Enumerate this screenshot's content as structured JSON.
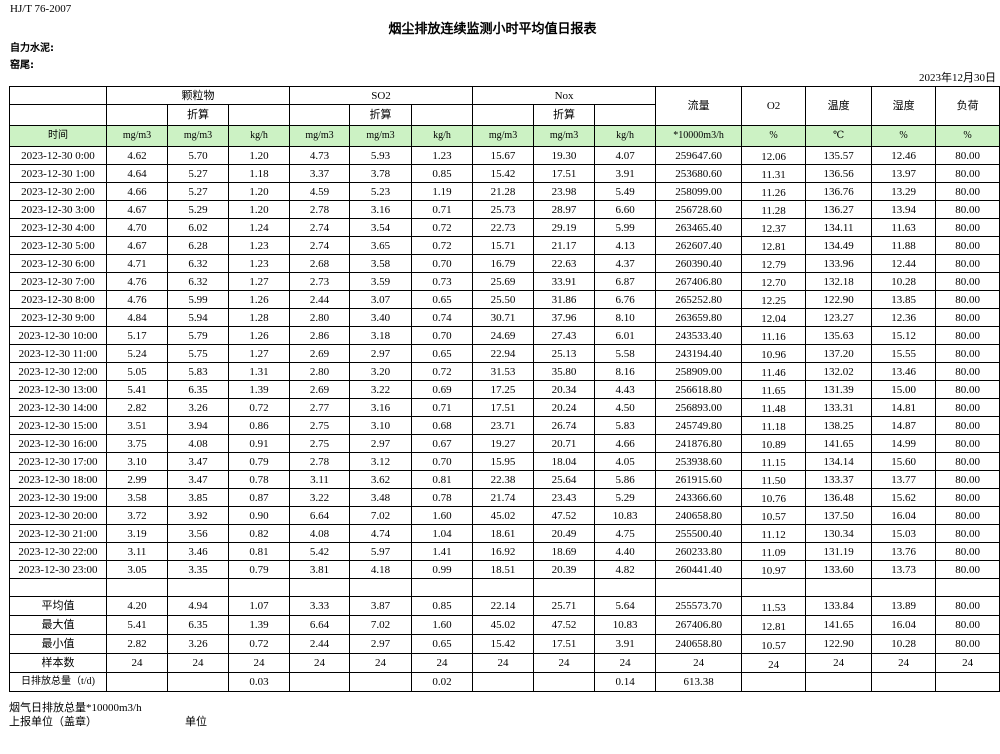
{
  "header": {
    "standard": "HJ/T  76-2007",
    "title": "烟尘排放连续监测小时平均值日报表",
    "company": "自力水泥:",
    "kiln": "窑尾:",
    "date": "2023年12月30日"
  },
  "table": {
    "groups": [
      "颗粒物",
      "SO2",
      "Nox"
    ],
    "converted_label": "折算",
    "single_headers": [
      "流量",
      "O2",
      "温度",
      "湿度",
      "负荷"
    ],
    "units": [
      "时间",
      "mg/m3",
      "mg/m3",
      "kg/h",
      "mg/m3",
      "mg/m3",
      "kg/h",
      "mg/m3",
      "mg/m3",
      "kg/h",
      "*10000m3/h",
      "%",
      "℃",
      "%",
      "%"
    ],
    "rows": [
      [
        "2023-12-30 0:00",
        "4.62",
        "5.70",
        "1.20",
        "4.73",
        "5.93",
        "1.23",
        "15.67",
        "19.30",
        "4.07",
        "259647.60",
        "12.06",
        "135.57",
        "12.46",
        "80.00"
      ],
      [
        "2023-12-30 1:00",
        "4.64",
        "5.27",
        "1.18",
        "3.37",
        "3.78",
        "0.85",
        "15.42",
        "17.51",
        "3.91",
        "253680.60",
        "11.31",
        "136.56",
        "13.97",
        "80.00"
      ],
      [
        "2023-12-30 2:00",
        "4.66",
        "5.27",
        "1.20",
        "4.59",
        "5.23",
        "1.19",
        "21.28",
        "23.98",
        "5.49",
        "258099.00",
        "11.26",
        "136.76",
        "13.29",
        "80.00"
      ],
      [
        "2023-12-30 3:00",
        "4.67",
        "5.29",
        "1.20",
        "2.78",
        "3.16",
        "0.71",
        "25.73",
        "28.97",
        "6.60",
        "256728.60",
        "11.28",
        "136.27",
        "13.94",
        "80.00"
      ],
      [
        "2023-12-30 4:00",
        "4.70",
        "6.02",
        "1.24",
        "2.74",
        "3.54",
        "0.72",
        "22.73",
        "29.19",
        "5.99",
        "263465.40",
        "12.37",
        "134.11",
        "11.63",
        "80.00"
      ],
      [
        "2023-12-30 5:00",
        "4.67",
        "6.28",
        "1.23",
        "2.74",
        "3.65",
        "0.72",
        "15.71",
        "21.17",
        "4.13",
        "262607.40",
        "12.81",
        "134.49",
        "11.88",
        "80.00"
      ],
      [
        "2023-12-30 6:00",
        "4.71",
        "6.32",
        "1.23",
        "2.68",
        "3.58",
        "0.70",
        "16.79",
        "22.63",
        "4.37",
        "260390.40",
        "12.79",
        "133.96",
        "12.44",
        "80.00"
      ],
      [
        "2023-12-30 7:00",
        "4.76",
        "6.32",
        "1.27",
        "2.73",
        "3.59",
        "0.73",
        "25.69",
        "33.91",
        "6.87",
        "267406.80",
        "12.70",
        "132.18",
        "10.28",
        "80.00"
      ],
      [
        "2023-12-30 8:00",
        "4.76",
        "5.99",
        "1.26",
        "2.44",
        "3.07",
        "0.65",
        "25.50",
        "31.86",
        "6.76",
        "265252.80",
        "12.25",
        "122.90",
        "13.85",
        "80.00"
      ],
      [
        "2023-12-30 9:00",
        "4.84",
        "5.94",
        "1.28",
        "2.80",
        "3.40",
        "0.74",
        "30.71",
        "37.96",
        "8.10",
        "263659.80",
        "12.04",
        "123.27",
        "12.36",
        "80.00"
      ],
      [
        "2023-12-30 10:00",
        "5.17",
        "5.79",
        "1.26",
        "2.86",
        "3.18",
        "0.70",
        "24.69",
        "27.43",
        "6.01",
        "243533.40",
        "11.16",
        "135.63",
        "15.12",
        "80.00"
      ],
      [
        "2023-12-30 11:00",
        "5.24",
        "5.75",
        "1.27",
        "2.69",
        "2.97",
        "0.65",
        "22.94",
        "25.13",
        "5.58",
        "243194.40",
        "10.96",
        "137.20",
        "15.55",
        "80.00"
      ],
      [
        "2023-12-30 12:00",
        "5.05",
        "5.83",
        "1.31",
        "2.80",
        "3.20",
        "0.72",
        "31.53",
        "35.80",
        "8.16",
        "258909.00",
        "11.46",
        "132.02",
        "13.46",
        "80.00"
      ],
      [
        "2023-12-30 13:00",
        "5.41",
        "6.35",
        "1.39",
        "2.69",
        "3.22",
        "0.69",
        "17.25",
        "20.34",
        "4.43",
        "256618.80",
        "11.65",
        "131.39",
        "15.00",
        "80.00"
      ],
      [
        "2023-12-30 14:00",
        "2.82",
        "3.26",
        "0.72",
        "2.77",
        "3.16",
        "0.71",
        "17.51",
        "20.24",
        "4.50",
        "256893.00",
        "11.48",
        "133.31",
        "14.81",
        "80.00"
      ],
      [
        "2023-12-30 15:00",
        "3.51",
        "3.94",
        "0.86",
        "2.75",
        "3.10",
        "0.68",
        "23.71",
        "26.74",
        "5.83",
        "245749.80",
        "11.18",
        "138.25",
        "14.87",
        "80.00"
      ],
      [
        "2023-12-30 16:00",
        "3.75",
        "4.08",
        "0.91",
        "2.75",
        "2.97",
        "0.67",
        "19.27",
        "20.71",
        "4.66",
        "241876.80",
        "10.89",
        "141.65",
        "14.99",
        "80.00"
      ],
      [
        "2023-12-30 17:00",
        "3.10",
        "3.47",
        "0.79",
        "2.78",
        "3.12",
        "0.70",
        "15.95",
        "18.04",
        "4.05",
        "253938.60",
        "11.15",
        "134.14",
        "15.60",
        "80.00"
      ],
      [
        "2023-12-30 18:00",
        "2.99",
        "3.47",
        "0.78",
        "3.11",
        "3.62",
        "0.81",
        "22.38",
        "25.64",
        "5.86",
        "261915.60",
        "11.50",
        "133.37",
        "13.77",
        "80.00"
      ],
      [
        "2023-12-30 19:00",
        "3.58",
        "3.85",
        "0.87",
        "3.22",
        "3.48",
        "0.78",
        "21.74",
        "23.43",
        "5.29",
        "243366.60",
        "10.76",
        "136.48",
        "15.62",
        "80.00"
      ],
      [
        "2023-12-30 20:00",
        "3.72",
        "3.92",
        "0.90",
        "6.64",
        "7.02",
        "1.60",
        "45.02",
        "47.52",
        "10.83",
        "240658.80",
        "10.57",
        "137.50",
        "16.04",
        "80.00"
      ],
      [
        "2023-12-30 21:00",
        "3.19",
        "3.56",
        "0.82",
        "4.08",
        "4.74",
        "1.04",
        "18.61",
        "20.49",
        "4.75",
        "255500.40",
        "11.12",
        "130.34",
        "15.03",
        "80.00"
      ],
      [
        "2023-12-30 22:00",
        "3.11",
        "3.46",
        "0.81",
        "5.42",
        "5.97",
        "1.41",
        "16.92",
        "18.69",
        "4.40",
        "260233.80",
        "11.09",
        "131.19",
        "13.76",
        "80.00"
      ],
      [
        "2023-12-30 23:00",
        "3.05",
        "3.35",
        "0.79",
        "3.81",
        "4.18",
        "0.99",
        "18.51",
        "20.39",
        "4.82",
        "260441.40",
        "10.97",
        "133.60",
        "13.73",
        "80.00"
      ]
    ],
    "summary": [
      [
        "平均值",
        "4.20",
        "4.94",
        "1.07",
        "3.33",
        "3.87",
        "0.85",
        "22.14",
        "25.71",
        "5.64",
        "255573.70",
        "11.53",
        "133.84",
        "13.89",
        "80.00"
      ],
      [
        "最大值",
        "5.41",
        "6.35",
        "1.39",
        "6.64",
        "7.02",
        "1.60",
        "45.02",
        "47.52",
        "10.83",
        "267406.80",
        "12.81",
        "141.65",
        "16.04",
        "80.00"
      ],
      [
        "最小值",
        "2.82",
        "3.26",
        "0.72",
        "2.44",
        "2.97",
        "0.65",
        "15.42",
        "17.51",
        "3.91",
        "240658.80",
        "10.57",
        "122.90",
        "10.28",
        "80.00"
      ],
      [
        "样本数",
        "24",
        "24",
        "24",
        "24",
        "24",
        "24",
        "24",
        "24",
        "24",
        "24",
        "24",
        "24",
        "24",
        "24"
      ],
      [
        "日排放总量（t/d)",
        "",
        "",
        "0.03",
        "",
        "",
        "0.02",
        "",
        "",
        "0.14",
        "613.38",
        "",
        "",
        "",
        ""
      ]
    ]
  },
  "footer": {
    "flue_note": "烟气日排放总量*10000m3/h",
    "report_unit": "上报单位（盖章）",
    "unit_label": "单位"
  },
  "colors": {
    "unit_row_bg": "#ccf2c4"
  }
}
